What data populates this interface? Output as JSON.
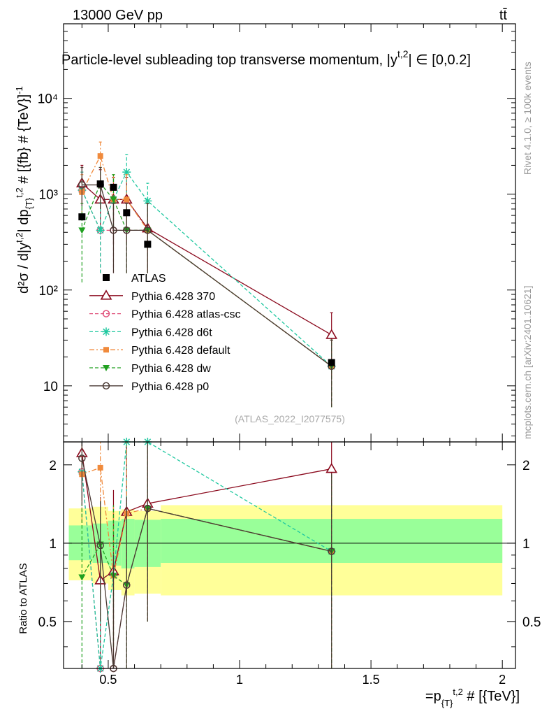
{
  "header": {
    "left": "13000 GeV pp",
    "right": "tt̄",
    "title": "Particle-level subleading top transverse momentum, |y",
    "title_sup": "t,2",
    "title_tail": "| ∈ [0,0.2]",
    "side_rivet": "Rivet 4.1.0, ≥ 100k events",
    "side_mcplots": "mcplots.cern.ch [arXiv:2401.10621]",
    "watermark": "(ATLAS_2022_I2077575)"
  },
  "axes": {
    "ylabel_top": "d²σ / d|y^{t,2}| dp_{T}^{t,2} # [{fb} # {TeV}]^{-1}",
    "ylabel_bottom": "Ratio to ATLAS",
    "xlabel": "=p_{T}^{t,2} # [{TeV}]"
  },
  "colors": {
    "data": "#000000",
    "p370": "#8b0a1e",
    "atlascsc": "#e0507a",
    "d6t": "#20c8a0",
    "default": "#f08a3c",
    "dw": "#20a020",
    "p0": "#4a3a34",
    "band_outer": "#ffff99",
    "band_inner": "#99ff99"
  },
  "chart_data": {
    "type": "line",
    "x_ticks": [
      "0.5",
      "1",
      "1.5",
      "2"
    ],
    "x_tick_values": [
      0.5,
      1,
      1.5,
      2
    ],
    "xlim": [
      0.33,
      2.05
    ],
    "top": {
      "yscale": "log",
      "ylim": [
        2.6,
        60000
      ],
      "y_ticks": [
        "10",
        "10²",
        "10³",
        "10⁴"
      ],
      "y_tick_values": [
        10,
        100,
        1000,
        10000
      ]
    },
    "ratio": {
      "ylim": [
        0.33,
        2.45
      ],
      "y_ticks": [
        "0.5",
        "1",
        "2"
      ],
      "y_tick_values": [
        0.5,
        1,
        2
      ]
    },
    "bins": [
      [
        0.35,
        0.44
      ],
      [
        0.44,
        0.5
      ],
      [
        0.5,
        0.55
      ],
      [
        0.55,
        0.6
      ],
      [
        0.6,
        0.7
      ],
      [
        0.7,
        2.0
      ]
    ],
    "band_inner": [
      [
        0.86,
        1.17
      ],
      [
        0.84,
        1.19
      ],
      [
        0.82,
        1.22
      ],
      [
        0.8,
        1.24
      ],
      [
        0.81,
        1.23
      ],
      [
        0.84,
        1.24
      ]
    ],
    "band_outer": [
      [
        0.72,
        1.36
      ],
      [
        0.7,
        1.38
      ],
      [
        0.66,
        1.33
      ],
      [
        0.63,
        1.35
      ],
      [
        0.64,
        1.33
      ],
      [
        0.63,
        1.4
      ]
    ],
    "data": {
      "name": "ATLAS",
      "x": [
        0.4,
        0.47,
        0.52,
        0.57,
        0.65,
        1.35
      ],
      "y": [
        580,
        1280,
        1180,
        640,
        300,
        17.5
      ]
    },
    "series": [
      {
        "name": "Pythia 6.428 370",
        "key": "p370",
        "marker": "triangle-open",
        "dash": "",
        "x": [
          0.4,
          0.47,
          0.52,
          0.57,
          0.65,
          1.35
        ],
        "y": [
          1300,
          880,
          880,
          880,
          440,
          34
        ],
        "err": [
          [
            800,
            2000
          ],
          [
            400,
            1800
          ],
          [
            300,
            1500
          ],
          [
            300,
            1500
          ],
          [
            150,
            800
          ],
          [
            12,
            58
          ]
        ],
        "ratio": [
          2.22,
          0.72,
          0.78,
          1.32,
          1.42,
          1.93
        ],
        "ratio_err": [
          [
            1.5,
            2.45
          ],
          [
            0.35,
            1.5
          ],
          [
            0.33,
            1.6
          ],
          [
            0.6,
            2.45
          ],
          [
            0.6,
            2.45
          ],
          [
            0.7,
            2.45
          ]
        ]
      },
      {
        "name": "Pythia 6.428 atlas-csc",
        "key": "atlascsc",
        "marker": "circle-open",
        "dash": "5,3",
        "x": [
          0.4,
          0.47,
          0.52,
          0.57,
          0.65,
          1.35
        ],
        "y": [
          1100,
          420,
          420,
          420,
          420,
          16
        ],
        "err": [
          [
            650,
            1700
          ],
          [
            150,
            800
          ],
          [
            150,
            800
          ],
          [
            150,
            800
          ],
          [
            150,
            800
          ],
          [
            6,
            30
          ]
        ],
        "ratio": [
          1.88,
          0.33,
          0.33,
          0.69,
          1.36,
          0.93
        ],
        "ratio_err": [
          [
            1.2,
            2.45
          ],
          [
            0.33,
            0.9
          ],
          [
            0.33,
            0.9
          ],
          [
            0.33,
            1.5
          ],
          [
            0.5,
            2.45
          ],
          [
            0.33,
            1.85
          ]
        ]
      },
      {
        "name": "Pythia 6.428 d6t",
        "key": "d6t",
        "marker": "star",
        "dash": "5,3",
        "x": [
          0.4,
          0.47,
          0.52,
          0.57,
          0.65,
          1.35
        ],
        "y": [
          1100,
          420,
          880,
          1700,
          850,
          16
        ],
        "err": [
          [
            650,
            1700
          ],
          [
            150,
            800
          ],
          [
            400,
            1600
          ],
          [
            1000,
            2600
          ],
          [
            500,
            1300
          ],
          [
            6,
            30
          ]
        ],
        "ratio": [
          1.88,
          0.33,
          0.75,
          2.45,
          2.45,
          0.93
        ],
        "ratio_err": [
          [
            1.2,
            2.45
          ],
          [
            0.33,
            0.9
          ],
          [
            0.4,
            1.4
          ],
          [
            1.5,
            2.45
          ],
          [
            1.5,
            2.45
          ],
          [
            0.33,
            1.85
          ]
        ]
      },
      {
        "name": "Pythia 6.428 default",
        "key": "default",
        "marker": "square",
        "dash": "7,3,2,3",
        "x": [
          0.4,
          0.47,
          0.52,
          0.57,
          0.65,
          1.35
        ],
        "y": [
          1050,
          2500,
          880,
          880,
          420,
          16
        ],
        "err": [
          [
            600,
            1600
          ],
          [
            1500,
            3500
          ],
          [
            400,
            1600
          ],
          [
            400,
            1600
          ],
          [
            150,
            800
          ],
          [
            6,
            30
          ]
        ],
        "ratio": [
          1.84,
          1.95,
          0.75,
          1.3,
          1.36,
          0.93
        ],
        "ratio_err": [
          [
            1.2,
            2.45
          ],
          [
            1.3,
            2.45
          ],
          [
            0.4,
            1.4
          ],
          [
            0.6,
            2.45
          ],
          [
            0.5,
            2.45
          ],
          [
            0.33,
            1.85
          ]
        ]
      },
      {
        "name": "Pythia 6.428 dw",
        "key": "dw",
        "marker": "triangle-down",
        "dash": "5,3",
        "x": [
          0.4,
          0.47,
          0.52,
          0.57,
          0.65,
          1.35
        ],
        "y": [
          420,
          1300,
          880,
          420,
          420,
          16
        ],
        "err": [
          [
            120,
            800
          ],
          [
            700,
            1900
          ],
          [
            400,
            1600
          ],
          [
            150,
            800
          ],
          [
            150,
            800
          ],
          [
            6,
            30
          ]
        ],
        "ratio": [
          0.74,
          0.99,
          0.75,
          0.69,
          1.36,
          0.93
        ],
        "ratio_err": [
          [
            0.33,
            1.4
          ],
          [
            0.5,
            1.45
          ],
          [
            0.4,
            1.4
          ],
          [
            0.33,
            1.5
          ],
          [
            0.5,
            2.45
          ],
          [
            0.33,
            1.85
          ]
        ]
      },
      {
        "name": "Pythia 6.428 p0",
        "key": "p0",
        "marker": "circle-open",
        "dash": "",
        "x": [
          0.4,
          0.47,
          0.52,
          0.57,
          0.65,
          1.35
        ],
        "y": [
          1250,
          1250,
          420,
          420,
          420,
          16
        ],
        "err": [
          [
            750,
            1900
          ],
          [
            700,
            1900
          ],
          [
            150,
            800
          ],
          [
            150,
            800
          ],
          [
            150,
            800
          ],
          [
            6,
            30
          ]
        ],
        "ratio": [
          2.12,
          0.98,
          0.33,
          0.69,
          1.36,
          0.93
        ],
        "ratio_err": [
          [
            1.4,
            2.45
          ],
          [
            0.5,
            1.45
          ],
          [
            0.33,
            0.9
          ],
          [
            0.33,
            1.5
          ],
          [
            0.5,
            2.45
          ],
          [
            0.33,
            1.85
          ]
        ]
      }
    ]
  }
}
